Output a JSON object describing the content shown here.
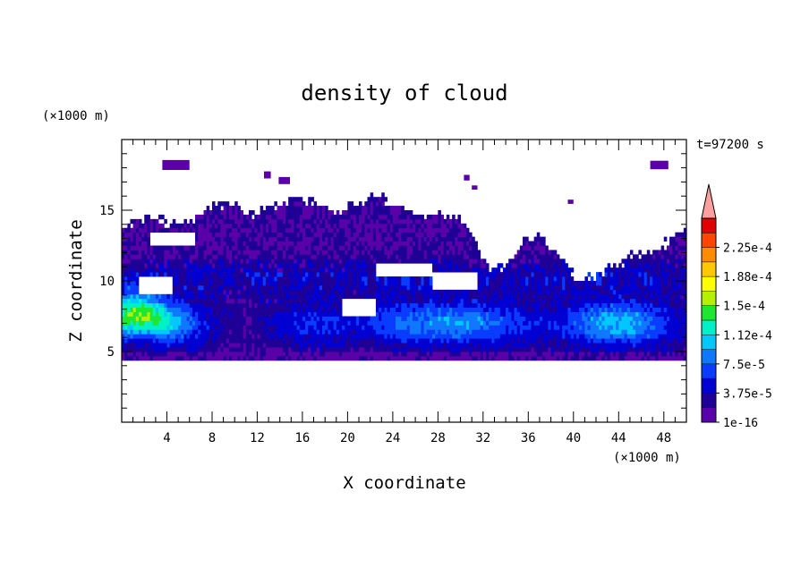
{
  "chart_data": {
    "type": "heatmap",
    "title": "density of cloud",
    "xlabel": "X coordinate",
    "ylabel": "Z coordinate",
    "x_unit": "(×1000 m)",
    "y_unit": "(×1000 m)",
    "time_label": "t=97200 s",
    "xlim": [
      0,
      50
    ],
    "ylim": [
      0,
      20
    ],
    "x_ticks": [
      4,
      8,
      12,
      16,
      20,
      24,
      28,
      32,
      36,
      40,
      44,
      48
    ],
    "y_ticks": [
      5,
      10,
      15
    ],
    "colorbar": {
      "levels": [
        1e-16,
        1.875e-05,
        3.75e-05,
        5.625e-05,
        7.5e-05,
        9.375e-05,
        0.0001125,
        0.00013125,
        0.00015,
        0.00016875,
        0.0001875,
        0.00020625,
        0.000225,
        0.00024375
      ],
      "labels": [
        "1e-16",
        "3.75e-5",
        "7.5e-5",
        "1.12e-4",
        "1.5e-4",
        "1.88e-4",
        "2.25e-4"
      ],
      "colors": [
        "#5a00a8",
        "#1e0096",
        "#0000d2",
        "#0a3cff",
        "#0f78ff",
        "#00c8ff",
        "#00f0c8",
        "#1ee632",
        "#b4f000",
        "#ffff00",
        "#ffc800",
        "#ff8c00",
        "#ff4600",
        "#e10000"
      ],
      "extend_color": "#ffa0a0"
    }
  }
}
